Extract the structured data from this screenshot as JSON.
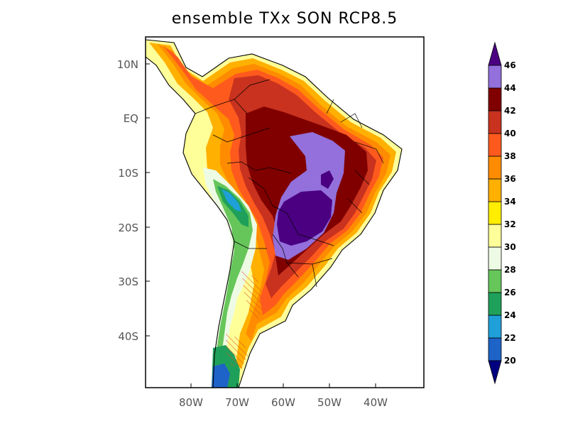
{
  "title": "ensemble TXx SON RCP8.5",
  "lat_ticks": [
    "10N",
    "EQ",
    "10S",
    "20S",
    "30S",
    "40S"
  ],
  "lon_ticks": [
    "80W",
    "70W",
    "60W",
    "50W",
    "40W"
  ],
  "colorbar": {
    "levels": [
      20,
      22,
      24,
      26,
      28,
      30,
      32,
      34,
      36,
      38,
      40,
      42,
      44,
      46
    ],
    "labels": [
      "20",
      "22",
      "24",
      "26",
      "28",
      "30",
      "32",
      "34",
      "36",
      "38",
      "40",
      "42",
      "44",
      "46"
    ],
    "colors": [
      "#0a2a9e",
      "#1e63c8",
      "#1fa0d8",
      "#1fa05a",
      "#66c65a",
      "#eefbe4",
      "#ffff99",
      "#ffee00",
      "#ffb000",
      "#ff8c00",
      "#ff5a1e",
      "#c8321e",
      "#800000",
      "#9370db",
      "#4b0082"
    ],
    "under_color": "#000080",
    "over_color": "#4b0082"
  }
}
